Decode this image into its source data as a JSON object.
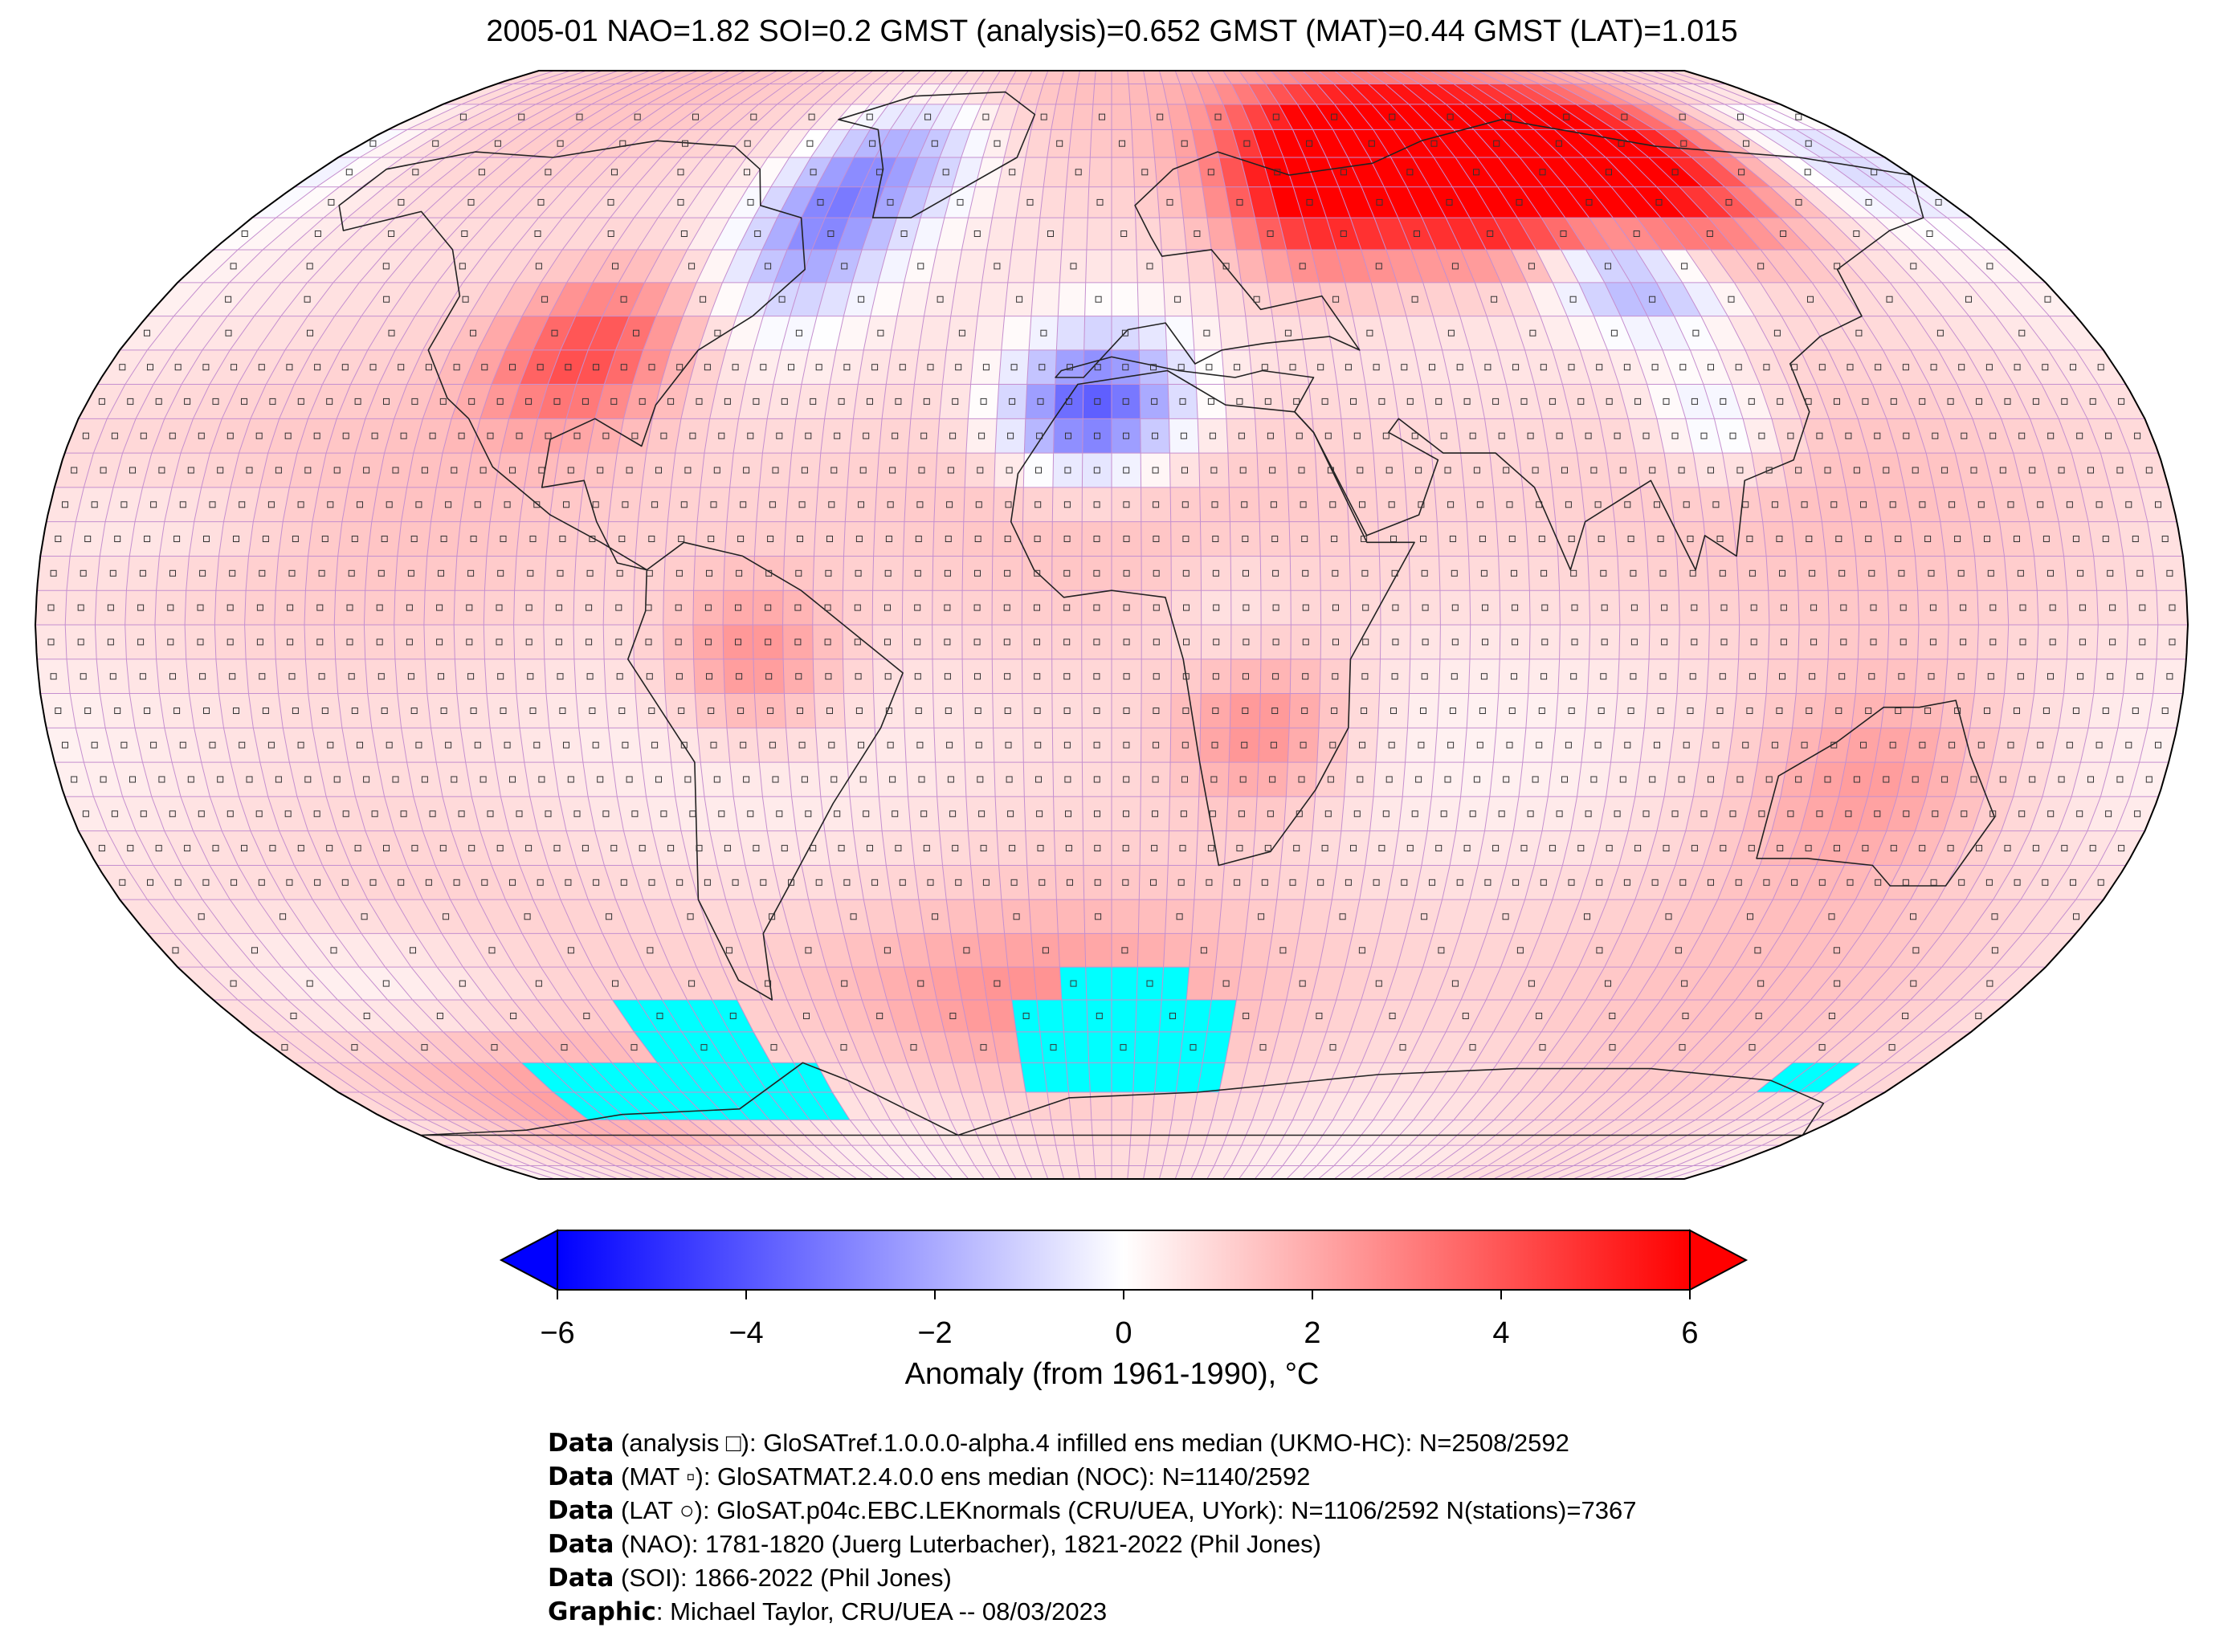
{
  "title": "2005-01 NAO=1.82 SOI=0.2 GMST (analysis)=0.652 GMST (MAT)=0.44 GMST (LAT)=1.015",
  "colorbar": {
    "label": "Anomaly (from 1961-1990), °C",
    "ticks": [
      "−6",
      "−4",
      "−2",
      "0",
      "2",
      "4",
      "6"
    ],
    "range": [
      -6,
      6
    ],
    "cold_color": "#0000ff",
    "neutral_color": "#ffffff",
    "warm_color": "#ff0000",
    "extends": "both"
  },
  "map": {
    "projection": "Robinson",
    "grid": "5x5 degree",
    "missing_color": "#00ffff",
    "gridline_color": "#c58fcf"
  },
  "footer": [
    {
      "label": "Data",
      "text": " (analysis □): GloSATref.1.0.0.0-alpha.4 infilled ens median (UKMO-HC): N=2508/2592"
    },
    {
      "label": "Data",
      "text": " (MAT ▫): GloSATMAT.2.4.0.0 ens median (NOC): N=1140/2592"
    },
    {
      "label": "Data",
      "text": " (LAT ○): GloSAT.p04c.EBC.LEKnormals (CRU/UEA, UYork): N=1106/2592 N(stations)=7367"
    },
    {
      "label": "Data",
      "text": " (NAO): 1781-1820 (Juerg Luterbacher), 1821-2022 (Phil Jones)"
    },
    {
      "label": "Data",
      "text": " (SOI): 1866-2022 (Phil Jones)"
    },
    {
      "label": "Graphic",
      "text": ": Michael Taylor, CRU/UEA -- 08/03/2023"
    }
  ]
}
